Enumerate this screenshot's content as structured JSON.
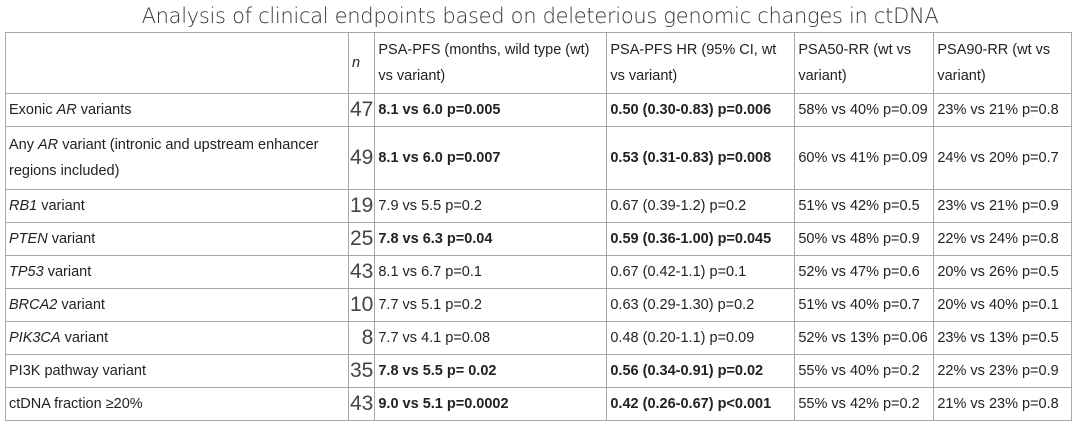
{
  "title": "Analysis of clinical endpoints based on deleterious genomic changes in ctDNA",
  "headers": [
    "",
    "n",
    "PSA-PFS (months, wild type (wt) vs variant)",
    "PSA-PFS HR (95% CI, wt vs variant)",
    "PSA50-RR (wt vs variant)",
    "PSA90-RR (wt vs variant)"
  ],
  "rows": [
    {
      "pre": "Exonic ",
      "gene": "AR",
      "post": " variants",
      "n": "47",
      "pfs": "8.1 vs 6.0 p=0.005",
      "hr": "0.50 (0.30-0.83) p=0.006",
      "rr50": "58% vs 40% p=0.09",
      "rr90": "23% vs 21% p=0.8",
      "significant": true
    },
    {
      "pre": "Any ",
      "gene": "AR",
      "post": " variant (intronic and upstream enhancer regions included)",
      "n": "49",
      "pfs": "8.1 vs 6.0 p=0.007",
      "hr": "0.53 (0.31-0.83) p=0.008",
      "rr50": "60% vs 41% p=0.09",
      "rr90": "24% vs 20% p=0.7",
      "significant": true
    },
    {
      "pre": "",
      "gene": "RB1",
      "post": " variant",
      "n": "19",
      "pfs": "7.9 vs 5.5 p=0.2",
      "hr": "0.67 (0.39-1.2) p=0.2",
      "rr50": "51% vs 42% p=0.5",
      "rr90": "23% vs 21% p=0.9",
      "significant": false
    },
    {
      "pre": "",
      "gene": "PTEN",
      "post": " variant",
      "n": "25",
      "pfs": "7.8 vs 6.3 p=0.04",
      "hr": "0.59 (0.36-1.00) p=0.045",
      "rr50": "50% vs 48% p=0.9",
      "rr90": "22% vs 24% p=0.8",
      "significant": true
    },
    {
      "pre": "",
      "gene": "TP53",
      "post": " variant",
      "n": "43",
      "pfs": "8.1 vs 6.7 p=0.1",
      "hr": "0.67 (0.42-1.1) p=0.1",
      "rr50": "52% vs 47% p=0.6",
      "rr90": "20% vs 26% p=0.5",
      "significant": false
    },
    {
      "pre": "",
      "gene": "BRCA2",
      "post": " variant",
      "n": "10",
      "pfs": "7.7 vs 5.1 p=0.2",
      "hr": "0.63 (0.29-1.30) p=0.2",
      "rr50": "51% vs 40% p=0.7",
      "rr90": "20% vs 40% p=0.1",
      "significant": false
    },
    {
      "pre": "",
      "gene": "PIK3CA",
      "post": " variant",
      "n": "8",
      "pfs": "7.7 vs 4.1 p=0.08",
      "hr": "0.48 (0.20-1.1) p=0.09",
      "rr50": "52% vs 13% p=0.06",
      "rr90": "23% vs 13% p=0.5",
      "significant": false
    },
    {
      "pre": "PI3K pathway variant",
      "gene": "",
      "post": "",
      "n": "35",
      "pfs": "7.8 vs 5.5 p= 0.02",
      "hr": "0.56 (0.34-0.91) p=0.02",
      "rr50": "55% vs 40% p=0.2",
      "rr90": "22% vs 23% p=0.9",
      "significant": true
    },
    {
      "pre": "ctDNA fraction ≥20%",
      "gene": "",
      "post": "",
      "n": "43",
      "pfs": "9.0 vs 5.1 p=0.0002",
      "hr": "0.42 (0.26-0.67) p<0.001",
      "rr50": "55% vs 42% p=0.2",
      "rr90": "21% vs 23% p=0.8",
      "significant": true
    }
  ]
}
